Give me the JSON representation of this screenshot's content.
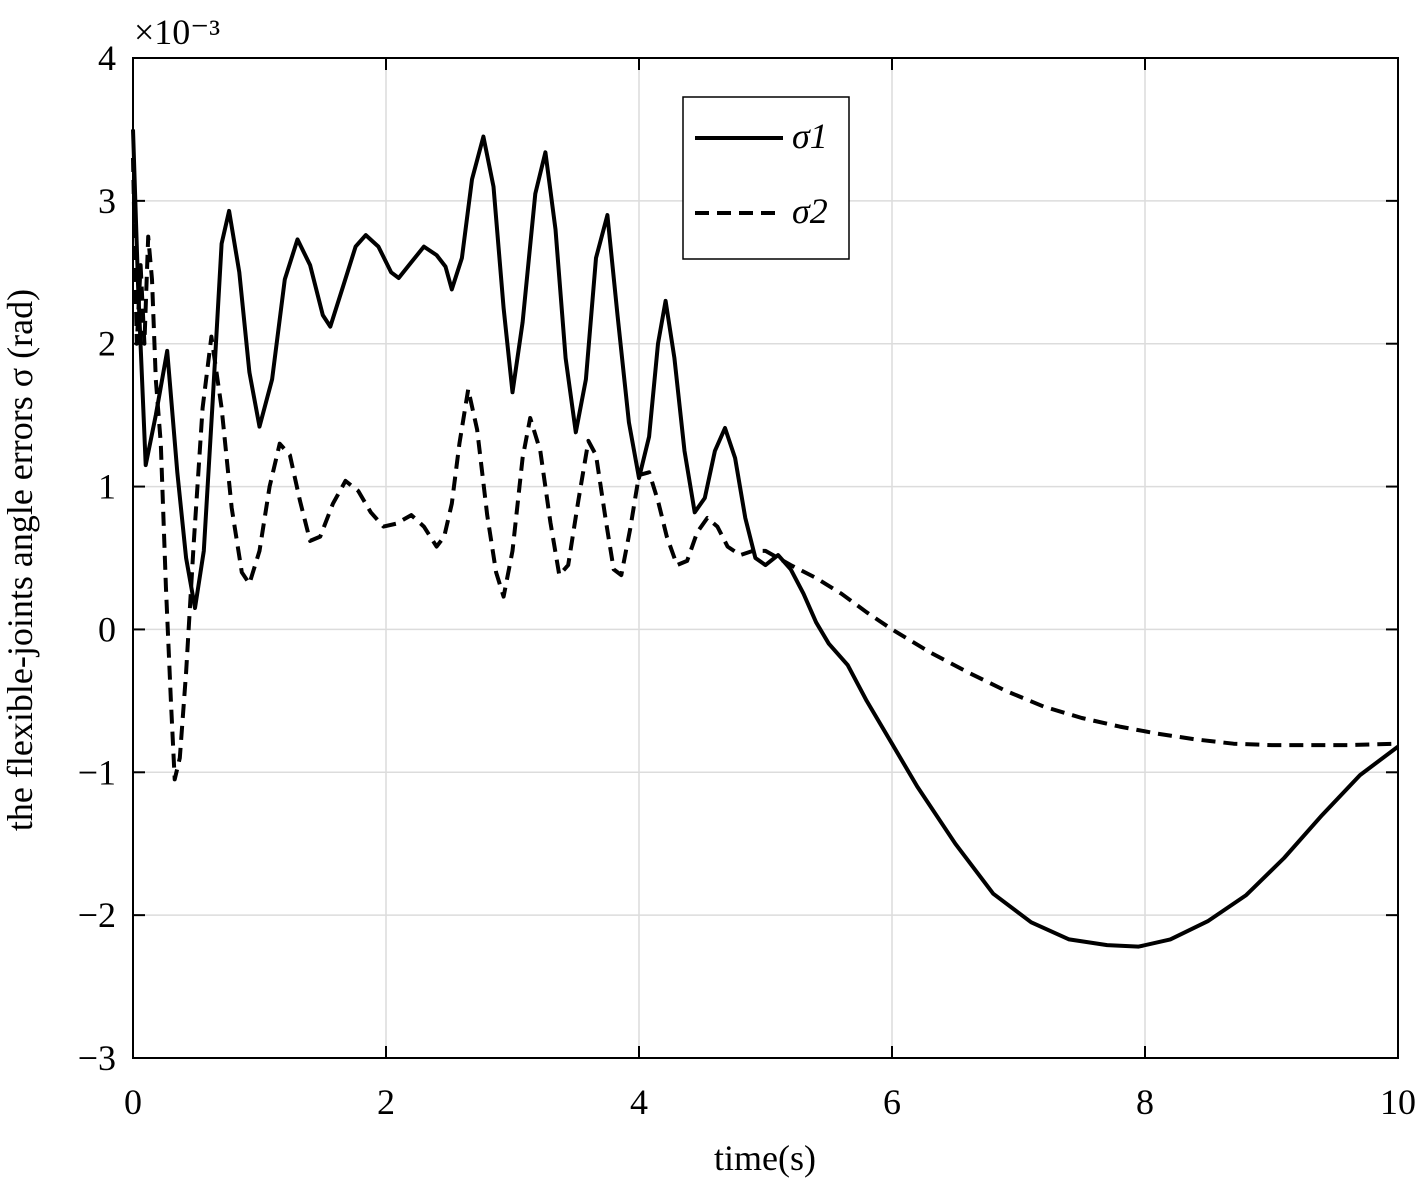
{
  "chart_data": {
    "type": "line",
    "title": "",
    "xlabel": "time(s)",
    "ylabel": "the flexible-joints angle errors σ (rad)",
    "xlim": [
      0,
      10
    ],
    "ylim": [
      -3,
      4
    ],
    "y_multiplier_label": "×10⁻³",
    "x_ticks": [
      0,
      2,
      4,
      6,
      8,
      10
    ],
    "y_ticks": [
      -3,
      -2,
      -1,
      0,
      1,
      2,
      3,
      4
    ],
    "x_tick_labels": [
      "0",
      "2",
      "4",
      "6",
      "8",
      "10"
    ],
    "y_tick_labels": [
      "−3",
      "−2",
      "−1",
      "0",
      "1",
      "2",
      "3",
      "4"
    ],
    "grid": true,
    "legend_position": "top-right",
    "series": [
      {
        "name": "σ1",
        "style": "solid",
        "color": "#000000",
        "points": [
          [
            0.0,
            3.5
          ],
          [
            0.04,
            2.4
          ],
          [
            0.1,
            1.15
          ],
          [
            0.18,
            1.5
          ],
          [
            0.27,
            1.95
          ],
          [
            0.35,
            1.1
          ],
          [
            0.42,
            0.5
          ],
          [
            0.49,
            0.15
          ],
          [
            0.56,
            0.55
          ],
          [
            0.63,
            1.6
          ],
          [
            0.7,
            2.7
          ],
          [
            0.76,
            2.93
          ],
          [
            0.84,
            2.5
          ],
          [
            0.92,
            1.8
          ],
          [
            1.0,
            1.42
          ],
          [
            1.1,
            1.75
          ],
          [
            1.2,
            2.45
          ],
          [
            1.3,
            2.73
          ],
          [
            1.4,
            2.55
          ],
          [
            1.5,
            2.2
          ],
          [
            1.56,
            2.12
          ],
          [
            1.66,
            2.4
          ],
          [
            1.76,
            2.68
          ],
          [
            1.84,
            2.76
          ],
          [
            1.94,
            2.68
          ],
          [
            2.04,
            2.5
          ],
          [
            2.1,
            2.46
          ],
          [
            2.2,
            2.57
          ],
          [
            2.3,
            2.68
          ],
          [
            2.4,
            2.62
          ],
          [
            2.47,
            2.54
          ],
          [
            2.52,
            2.38
          ],
          [
            2.6,
            2.6
          ],
          [
            2.68,
            3.15
          ],
          [
            2.77,
            3.45
          ],
          [
            2.85,
            3.1
          ],
          [
            2.93,
            2.25
          ],
          [
            3.0,
            1.66
          ],
          [
            3.08,
            2.15
          ],
          [
            3.18,
            3.05
          ],
          [
            3.26,
            3.34
          ],
          [
            3.34,
            2.8
          ],
          [
            3.42,
            1.9
          ],
          [
            3.5,
            1.38
          ],
          [
            3.58,
            1.75
          ],
          [
            3.66,
            2.6
          ],
          [
            3.75,
            2.9
          ],
          [
            3.83,
            2.2
          ],
          [
            3.92,
            1.45
          ],
          [
            4.0,
            1.06
          ],
          [
            4.08,
            1.35
          ],
          [
            4.15,
            2.0
          ],
          [
            4.21,
            2.3
          ],
          [
            4.28,
            1.9
          ],
          [
            4.36,
            1.25
          ],
          [
            4.44,
            0.82
          ],
          [
            4.52,
            0.92
          ],
          [
            4.6,
            1.25
          ],
          [
            4.68,
            1.41
          ],
          [
            4.76,
            1.2
          ],
          [
            4.84,
            0.78
          ],
          [
            4.92,
            0.5
          ],
          [
            5.0,
            0.45
          ],
          [
            5.1,
            0.52
          ],
          [
            5.2,
            0.42
          ],
          [
            5.3,
            0.25
          ],
          [
            5.4,
            0.05
          ],
          [
            5.5,
            -0.1
          ],
          [
            5.65,
            -0.25
          ],
          [
            5.8,
            -0.5
          ],
          [
            6.0,
            -0.8
          ],
          [
            6.2,
            -1.1
          ],
          [
            6.5,
            -1.5
          ],
          [
            6.8,
            -1.85
          ],
          [
            7.1,
            -2.05
          ],
          [
            7.4,
            -2.17
          ],
          [
            7.7,
            -2.21
          ],
          [
            7.95,
            -2.22
          ],
          [
            8.2,
            -2.17
          ],
          [
            8.5,
            -2.04
          ],
          [
            8.8,
            -1.86
          ],
          [
            9.1,
            -1.6
          ],
          [
            9.4,
            -1.3
          ],
          [
            9.7,
            -1.02
          ],
          [
            10.0,
            -0.82
          ]
        ]
      },
      {
        "name": "σ2",
        "style": "dashed",
        "color": "#000000",
        "points": [
          [
            0.0,
            3.3
          ],
          [
            0.03,
            2.0
          ],
          [
            0.06,
            2.55
          ],
          [
            0.09,
            2.0
          ],
          [
            0.12,
            2.75
          ],
          [
            0.15,
            2.45
          ],
          [
            0.18,
            1.75
          ],
          [
            0.22,
            1.3
          ],
          [
            0.26,
            0.3
          ],
          [
            0.3,
            -0.5
          ],
          [
            0.33,
            -1.05
          ],
          [
            0.37,
            -0.9
          ],
          [
            0.42,
            -0.3
          ],
          [
            0.48,
            0.6
          ],
          [
            0.55,
            1.55
          ],
          [
            0.62,
            2.05
          ],
          [
            0.7,
            1.55
          ],
          [
            0.78,
            0.85
          ],
          [
            0.86,
            0.4
          ],
          [
            0.92,
            0.32
          ],
          [
            1.0,
            0.55
          ],
          [
            1.08,
            1.0
          ],
          [
            1.16,
            1.3
          ],
          [
            1.24,
            1.22
          ],
          [
            1.32,
            0.9
          ],
          [
            1.4,
            0.62
          ],
          [
            1.48,
            0.65
          ],
          [
            1.58,
            0.88
          ],
          [
            1.68,
            1.04
          ],
          [
            1.78,
            0.97
          ],
          [
            1.88,
            0.82
          ],
          [
            1.98,
            0.72
          ],
          [
            2.08,
            0.74
          ],
          [
            2.2,
            0.8
          ],
          [
            2.3,
            0.72
          ],
          [
            2.4,
            0.58
          ],
          [
            2.46,
            0.65
          ],
          [
            2.52,
            0.88
          ],
          [
            2.58,
            1.3
          ],
          [
            2.65,
            1.68
          ],
          [
            2.72,
            1.4
          ],
          [
            2.8,
            0.8
          ],
          [
            2.87,
            0.4
          ],
          [
            2.93,
            0.23
          ],
          [
            3.0,
            0.55
          ],
          [
            3.08,
            1.2
          ],
          [
            3.14,
            1.48
          ],
          [
            3.22,
            1.25
          ],
          [
            3.3,
            0.75
          ],
          [
            3.37,
            0.38
          ],
          [
            3.44,
            0.45
          ],
          [
            3.52,
            0.9
          ],
          [
            3.6,
            1.32
          ],
          [
            3.66,
            1.22
          ],
          [
            3.74,
            0.75
          ],
          [
            3.8,
            0.42
          ],
          [
            3.86,
            0.38
          ],
          [
            3.93,
            0.7
          ],
          [
            4.0,
            1.08
          ],
          [
            4.08,
            1.1
          ],
          [
            4.15,
            0.9
          ],
          [
            4.22,
            0.65
          ],
          [
            4.3,
            0.45
          ],
          [
            4.38,
            0.48
          ],
          [
            4.46,
            0.68
          ],
          [
            4.54,
            0.78
          ],
          [
            4.62,
            0.72
          ],
          [
            4.7,
            0.58
          ],
          [
            4.8,
            0.52
          ],
          [
            4.9,
            0.55
          ],
          [
            5.0,
            0.55
          ],
          [
            5.2,
            0.45
          ],
          [
            5.4,
            0.36
          ],
          [
            5.6,
            0.25
          ],
          [
            5.8,
            0.12
          ],
          [
            6.0,
            0.0
          ],
          [
            6.3,
            -0.16
          ],
          [
            6.6,
            -0.3
          ],
          [
            6.9,
            -0.43
          ],
          [
            7.2,
            -0.54
          ],
          [
            7.5,
            -0.62
          ],
          [
            7.8,
            -0.68
          ],
          [
            8.1,
            -0.73
          ],
          [
            8.4,
            -0.77
          ],
          [
            8.7,
            -0.8
          ],
          [
            9.0,
            -0.81
          ],
          [
            9.3,
            -0.81
          ],
          [
            9.6,
            -0.81
          ],
          [
            10.0,
            -0.8
          ]
        ]
      }
    ]
  }
}
